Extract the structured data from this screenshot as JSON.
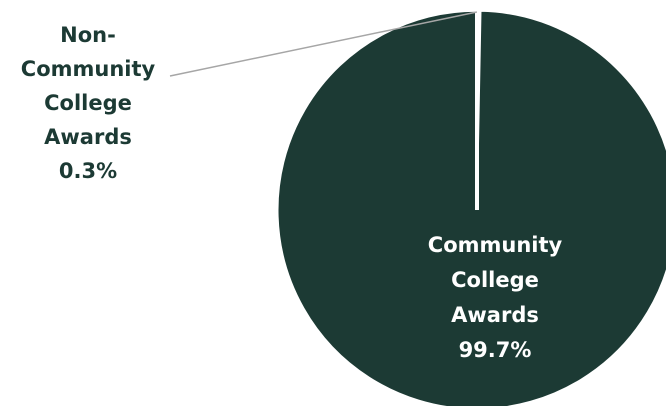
{
  "chart_data": {
    "type": "pie",
    "title": "",
    "slices": [
      {
        "label_lines": [
          "Non-",
          "Community",
          "College",
          "Awards"
        ],
        "value": 0.3,
        "value_text": "0.3%",
        "color": "#ffffff"
      },
      {
        "label_lines": [
          "Community",
          "College",
          "Awards"
        ],
        "value": 99.7,
        "value_text": "99.7%",
        "color": "#1c3a34"
      }
    ],
    "label_colors": {
      "outside": "#1c3a34",
      "inside": "#ffffff"
    },
    "leader_line_color": "#a6a6a6",
    "legend": "none"
  }
}
